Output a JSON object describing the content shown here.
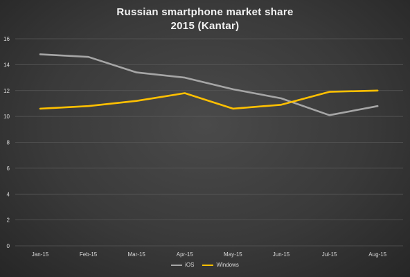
{
  "chart_data": {
    "type": "line",
    "title": "Russian smartphone market share",
    "subtitle": "2015 (Kantar)",
    "categories": [
      "Jan-15",
      "Feb-15",
      "Mar-15",
      "Apr-15",
      "May-15",
      "Jun-15",
      "Jul-15",
      "Aug-15"
    ],
    "series": [
      {
        "name": "iOS",
        "values": [
          14.8,
          14.6,
          13.4,
          13.0,
          12.1,
          11.4,
          10.1,
          10.8
        ],
        "color": "#a6a6a6"
      },
      {
        "name": "Windows",
        "values": [
          10.6,
          10.8,
          11.2,
          11.8,
          10.6,
          10.9,
          11.9,
          12.0
        ],
        "color": "#ffc000"
      }
    ],
    "ylim": [
      0,
      16
    ],
    "yticks": [
      0,
      2,
      4,
      6,
      8,
      10,
      12,
      14,
      16
    ],
    "xlabel": "",
    "ylabel": "",
    "grid": true,
    "legend": "bottom",
    "background": "#3a3a3a",
    "gridline_color": "#595959"
  }
}
